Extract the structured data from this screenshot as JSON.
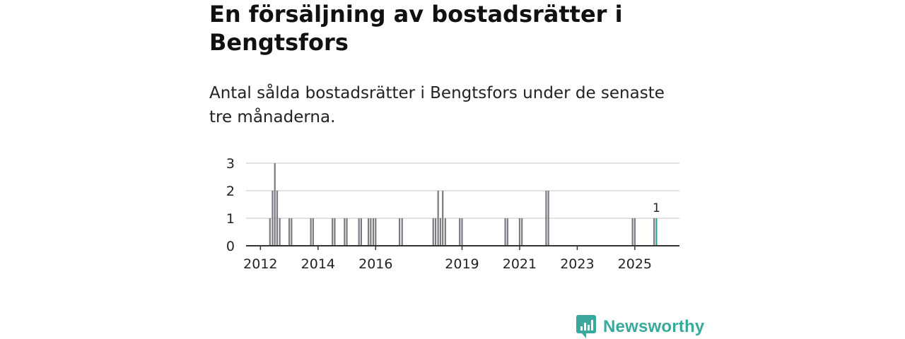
{
  "header": {
    "title": "En försäljning av bostadsrätter i Bengtsfors",
    "subtitle": "Antal sålda bostadsrätter i Bengtsfors under de senaste tre månaderna."
  },
  "brand": {
    "name": "Newsworthy",
    "color": "#3aa89b"
  },
  "colors": {
    "bar": "#7a7a82",
    "highlight": "#2fa396",
    "grid": "#d9d9d9",
    "axis": "#333333"
  },
  "chart_data": {
    "type": "bar",
    "ylim": [
      0,
      3
    ],
    "yticks": [
      0,
      1,
      2,
      3
    ],
    "xlim": [
      2011.5,
      2026.55
    ],
    "xticks": [
      {
        "value": 2012,
        "label": "2012"
      },
      {
        "value": 2014,
        "label": "2014"
      },
      {
        "value": 2016,
        "label": "2016"
      },
      {
        "value": 2019,
        "label": "2019"
      },
      {
        "value": 2021,
        "label": "2021"
      },
      {
        "value": 2023,
        "label": "2023"
      },
      {
        "value": 2025,
        "label": "2025"
      }
    ],
    "bar_width": 0.0833,
    "series": [
      {
        "name": "Sålda bostadsrätter",
        "points": [
          {
            "x": 2012.33,
            "y": 1
          },
          {
            "x": 2012.42,
            "y": 2
          },
          {
            "x": 2012.5,
            "y": 3
          },
          {
            "x": 2012.58,
            "y": 2
          },
          {
            "x": 2012.67,
            "y": 1
          },
          {
            "x": 2013.0,
            "y": 1
          },
          {
            "x": 2013.08,
            "y": 1
          },
          {
            "x": 2013.75,
            "y": 1
          },
          {
            "x": 2013.83,
            "y": 1
          },
          {
            "x": 2014.5,
            "y": 1
          },
          {
            "x": 2014.58,
            "y": 1
          },
          {
            "x": 2014.92,
            "y": 1
          },
          {
            "x": 2015.0,
            "y": 1
          },
          {
            "x": 2015.42,
            "y": 1
          },
          {
            "x": 2015.5,
            "y": 1
          },
          {
            "x": 2015.75,
            "y": 1
          },
          {
            "x": 2015.83,
            "y": 1
          },
          {
            "x": 2015.92,
            "y": 1
          },
          {
            "x": 2016.0,
            "y": 1
          },
          {
            "x": 2016.83,
            "y": 1
          },
          {
            "x": 2016.92,
            "y": 1
          },
          {
            "x": 2018.0,
            "y": 1
          },
          {
            "x": 2018.08,
            "y": 1
          },
          {
            "x": 2018.17,
            "y": 2
          },
          {
            "x": 2018.25,
            "y": 1
          },
          {
            "x": 2018.33,
            "y": 2
          },
          {
            "x": 2018.42,
            "y": 1
          },
          {
            "x": 2018.92,
            "y": 1
          },
          {
            "x": 2019.0,
            "y": 1
          },
          {
            "x": 2020.5,
            "y": 1
          },
          {
            "x": 2020.58,
            "y": 1
          },
          {
            "x": 2021.0,
            "y": 1
          },
          {
            "x": 2021.08,
            "y": 1
          },
          {
            "x": 2021.92,
            "y": 2
          },
          {
            "x": 2022.0,
            "y": 2
          },
          {
            "x": 2024.92,
            "y": 1
          },
          {
            "x": 2025.0,
            "y": 1
          },
          {
            "x": 2025.67,
            "y": 1
          }
        ]
      },
      {
        "name": "Senaste tre månaderna",
        "highlight": true,
        "points": [
          {
            "x": 2025.75,
            "y": 1,
            "label": "1"
          }
        ]
      }
    ]
  }
}
